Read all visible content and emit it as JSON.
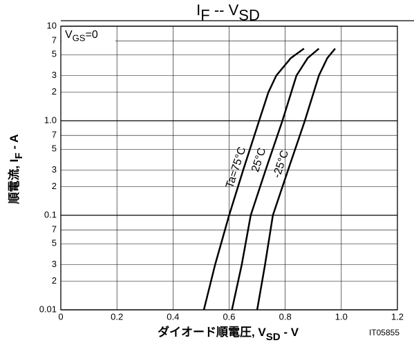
{
  "chart_data": {
    "type": "line",
    "title": [
      {
        "text": "I"
      },
      {
        "text": "F",
        "sub": true
      },
      {
        "text": " -- V"
      },
      {
        "text": "SD",
        "sub": true
      }
    ],
    "annotation": [
      {
        "text": "V"
      },
      {
        "text": "GS",
        "sub": true
      },
      {
        "text": "=0"
      }
    ],
    "x_label": [
      {
        "text": "ダイオード順電圧"
      },
      {
        "text": ", V"
      },
      {
        "text": "SD",
        "sub": true
      },
      {
        "text": " - V"
      }
    ],
    "y_label": [
      {
        "text": "順電流"
      },
      {
        "text": ", I"
      },
      {
        "text": "F",
        "sub": true
      },
      {
        "text": " - A"
      }
    ],
    "code": "IT05855",
    "xlim": [
      0,
      1.2
    ],
    "xticks": [
      0,
      0.2,
      0.4,
      0.6,
      0.8,
      {
        "value": 1,
        "label": "1.0"
      },
      1.2
    ],
    "ylim": [
      0.01,
      10
    ],
    "log_y": true,
    "yticks": [
      0.01,
      {
        "value": 0.02,
        "label": "2"
      },
      {
        "value": 0.03,
        "label": "3"
      },
      {
        "value": 0.05,
        "label": "5"
      },
      {
        "value": 0.07,
        "label": "7"
      },
      0.1,
      {
        "value": 0.2,
        "label": "2"
      },
      {
        "value": 0.3,
        "label": "3"
      },
      {
        "value": 0.5,
        "label": "5"
      },
      {
        "value": 0.7,
        "label": "7"
      },
      {
        "value": 1,
        "label": "1.0"
      },
      2,
      3,
      5,
      7,
      10
    ],
    "grid": true,
    "color": "#000000",
    "series": [
      {
        "name": "Ta=75°C",
        "x": [
          0.51,
          0.55,
          0.6,
          0.65,
          0.707,
          0.74,
          0.768,
          0.82,
          0.867
        ],
        "values": [
          0.01,
          0.03,
          0.1,
          0.3,
          1,
          2,
          3,
          4.6,
          5.8
        ]
      },
      {
        "name": "25°C",
        "x": [
          0.61,
          0.645,
          0.677,
          0.73,
          0.79,
          0.84,
          0.88,
          0.92
        ],
        "values": [
          0.01,
          0.03,
          0.1,
          0.3,
          1,
          3,
          4.6,
          5.8
        ]
      },
      {
        "name": "-25°C",
        "x": [
          0.7,
          0.728,
          0.756,
          0.81,
          0.87,
          0.92,
          0.95,
          0.978
        ],
        "values": [
          0.01,
          0.03,
          0.1,
          0.3,
          1,
          3,
          4.6,
          5.8
        ]
      }
    ]
  }
}
